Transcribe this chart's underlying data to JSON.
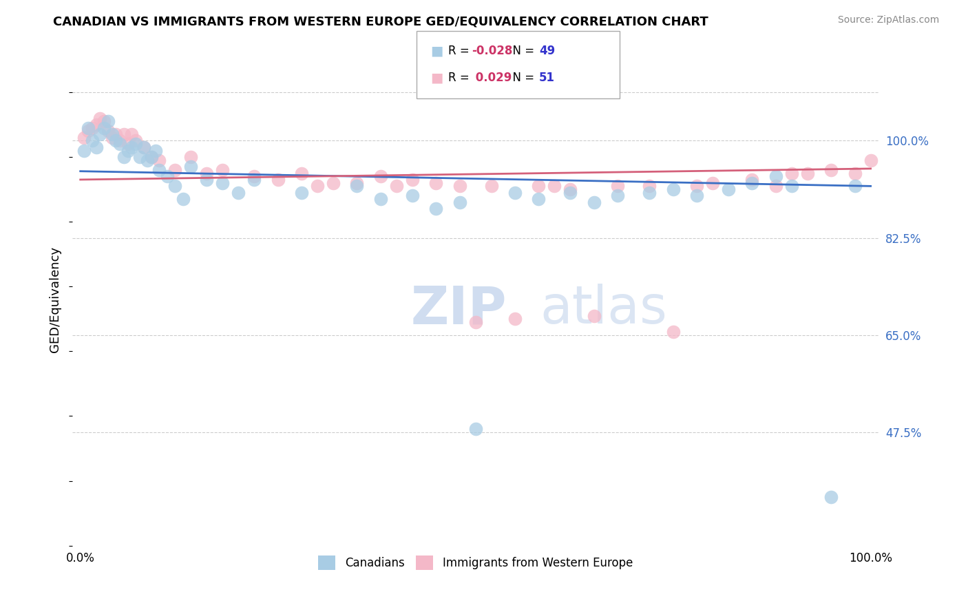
{
  "title": "CANADIAN VS IMMIGRANTS FROM WESTERN EUROPE GED/EQUIVALENCY CORRELATION CHART",
  "source": "Source: ZipAtlas.com",
  "ylabel": "GED/Equivalency",
  "legend_r_blue": "-0.028",
  "legend_n_blue": "49",
  "legend_r_pink": "0.029",
  "legend_n_pink": "51",
  "blue_color": "#a8cce4",
  "pink_color": "#f4b8c8",
  "trendline_blue": "#3a6fc4",
  "trendline_pink": "#d4607a",
  "r_value_color": "#cc3366",
  "n_value_color": "#3333cc",
  "right_axis_color": "#3a6fc4",
  "watermark_zip": "ZIP",
  "watermark_atlas": "atlas",
  "blue_x": [
    0.005,
    0.01,
    0.015,
    0.02,
    0.025,
    0.03,
    0.035,
    0.04,
    0.045,
    0.05,
    0.055,
    0.06,
    0.065,
    0.07,
    0.075,
    0.08,
    0.085,
    0.09,
    0.095,
    0.1,
    0.11,
    0.12,
    0.13,
    0.14,
    0.16,
    0.18,
    0.2,
    0.22,
    0.28,
    0.35,
    0.38,
    0.42,
    0.45,
    0.48,
    0.5,
    0.55,
    0.58,
    0.62,
    0.65,
    0.68,
    0.72,
    0.75,
    0.78,
    0.82,
    0.85,
    0.88,
    0.9,
    0.95,
    0.98
  ],
  "blue_y": [
    0.91,
    0.945,
    0.925,
    0.915,
    0.935,
    0.945,
    0.955,
    0.935,
    0.925,
    0.92,
    0.9,
    0.91,
    0.915,
    0.92,
    0.9,
    0.915,
    0.895,
    0.9,
    0.91,
    0.88,
    0.87,
    0.855,
    0.835,
    0.885,
    0.865,
    0.86,
    0.845,
    0.865,
    0.845,
    0.855,
    0.835,
    0.84,
    0.82,
    0.83,
    0.48,
    0.845,
    0.835,
    0.845,
    0.83,
    0.84,
    0.845,
    0.85,
    0.84,
    0.85,
    0.86,
    0.87,
    0.855,
    0.375,
    0.855
  ],
  "pink_x": [
    0.005,
    0.01,
    0.015,
    0.02,
    0.025,
    0.03,
    0.035,
    0.04,
    0.045,
    0.05,
    0.055,
    0.06,
    0.065,
    0.07,
    0.08,
    0.09,
    0.1,
    0.12,
    0.14,
    0.16,
    0.18,
    0.22,
    0.25,
    0.28,
    0.3,
    0.32,
    0.35,
    0.38,
    0.4,
    0.42,
    0.45,
    0.48,
    0.5,
    0.52,
    0.55,
    0.58,
    0.6,
    0.62,
    0.65,
    0.68,
    0.72,
    0.75,
    0.78,
    0.8,
    0.85,
    0.88,
    0.9,
    0.92,
    0.95,
    0.98,
    1.0
  ],
  "pink_y": [
    0.93,
    0.94,
    0.945,
    0.95,
    0.96,
    0.955,
    0.94,
    0.93,
    0.935,
    0.925,
    0.935,
    0.92,
    0.935,
    0.925,
    0.915,
    0.9,
    0.895,
    0.88,
    0.9,
    0.875,
    0.88,
    0.87,
    0.865,
    0.875,
    0.855,
    0.86,
    0.86,
    0.87,
    0.855,
    0.865,
    0.86,
    0.855,
    0.645,
    0.855,
    0.65,
    0.855,
    0.855,
    0.85,
    0.655,
    0.855,
    0.855,
    0.63,
    0.855,
    0.86,
    0.865,
    0.855,
    0.875,
    0.875,
    0.88,
    0.875,
    0.895
  ]
}
